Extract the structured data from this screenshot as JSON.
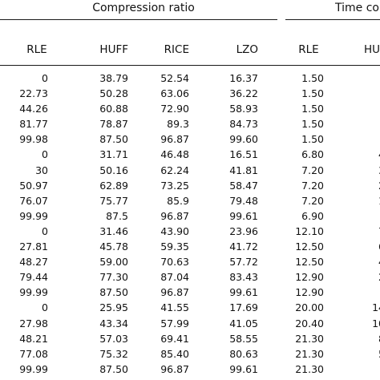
{
  "header": {
    "group1": "Compression ratio",
    "group2": "Time co",
    "columns": [
      "RLE",
      "HUFF",
      "RICE",
      "LZO",
      "RLE",
      "HU"
    ]
  },
  "rows": [
    [
      "0",
      "38.79",
      "52.54",
      "16.37",
      "1.50",
      ""
    ],
    [
      "22.73",
      "50.28",
      "63.06",
      "36.22",
      "1.50",
      ""
    ],
    [
      "44.26",
      "60.88",
      "72.90",
      "58.93",
      "1.50",
      ""
    ],
    [
      "81.77",
      "78.87",
      "89.3",
      "84.73",
      "1.50",
      ""
    ],
    [
      "99.98",
      "87.50",
      "96.87",
      "99.60",
      "1.50",
      ""
    ],
    [
      "0",
      "31.71",
      "46.48",
      "16.51",
      "6.80",
      "4"
    ],
    [
      "30",
      "50.16",
      "62.24",
      "41.81",
      "7.20",
      "3"
    ],
    [
      "50.97",
      "62.89",
      "73.25",
      "58.47",
      "7.20",
      "2"
    ],
    [
      "76.07",
      "75.77",
      "85.9",
      "79.48",
      "7.20",
      "1"
    ],
    [
      "99.99",
      "87.5",
      "96.87",
      "99.61",
      "6.90",
      ""
    ],
    [
      "0",
      "31.46",
      "43.90",
      "23.96",
      "12.10",
      "7"
    ],
    [
      "27.81",
      "45.78",
      "59.35",
      "41.72",
      "12.50",
      "6"
    ],
    [
      "48.27",
      "59.00",
      "70.63",
      "57.72",
      "12.50",
      "4"
    ],
    [
      "79.44",
      "77.30",
      "87.04",
      "83.43",
      "12.90",
      "2"
    ],
    [
      "99.99",
      "87.50",
      "96.87",
      "99.61",
      "12.90",
      ""
    ],
    [
      "0",
      "25.95",
      "41.55",
      "17.69",
      "20.00",
      "14"
    ],
    [
      "27.98",
      "43.34",
      "57.99",
      "41.05",
      "20.40",
      "10"
    ],
    [
      "48.21",
      "57.03",
      "69.41",
      "58.55",
      "21.30",
      "8"
    ],
    [
      "77.08",
      "75.32",
      "85.40",
      "80.63",
      "21.30",
      "5"
    ],
    [
      "99.99",
      "87.50",
      "96.87",
      "99.61",
      "21.30",
      ""
    ]
  ]
}
